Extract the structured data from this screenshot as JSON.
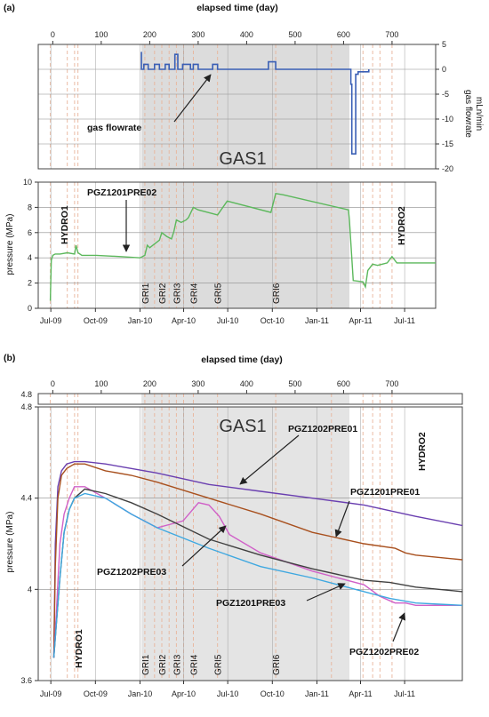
{
  "panel_a": {
    "label": "(a)",
    "top_axis_label": "elapsed time (day)",
    "top_ticks": [
      "0",
      "100",
      "200",
      "300",
      "400",
      "500",
      "600",
      "700"
    ],
    "month_ticks": [
      "Jul-09",
      "Oct-09",
      "Jan-10",
      "Apr-10",
      "Jul-10",
      "Oct-10",
      "Jan-11",
      "Apr-11",
      "Jul-11"
    ],
    "gas_area_label": "GAS1",
    "flow": {
      "ylabel_line1": "gas flowrate",
      "ylabel_line2": "mLn/min",
      "yticks": [
        "5",
        "0",
        "-5",
        "-10",
        "-15",
        "-20"
      ],
      "annotation": "gas flowrate"
    },
    "pressure": {
      "ylabel": "pressure (MPa)",
      "yticks": [
        "10",
        "8",
        "6",
        "4",
        "2",
        "0"
      ],
      "annotations": [
        "HYDRO1",
        "PGZ1201PRE02",
        "HYDRO2"
      ],
      "gri_labels": [
        "GRI1",
        "GRI2",
        "GRI3",
        "GRI4",
        "GRI5",
        "GRI6"
      ]
    },
    "colors": {
      "flow": "#3a5fb5",
      "pressure": "#5cb85c",
      "shade": "#dcdcdc",
      "event": "#e8b49a"
    }
  },
  "panel_b": {
    "label": "(b)",
    "top_axis_label": "elapsed time (day)",
    "top_ticks": [
      "0",
      "100",
      "200",
      "300",
      "400",
      "500",
      "600",
      "700"
    ],
    "month_ticks": [
      "Jul-09",
      "Oct-09",
      "Jan-10",
      "Apr-10",
      "Jul-10",
      "Oct-10",
      "Jan-11",
      "Apr-11",
      "Jul-11"
    ],
    "ylabel": "pressure (MPa)",
    "yticks": [
      "4.8",
      "4.4",
      "4",
      "3.6"
    ],
    "strip_ytick": "4.8",
    "gas_area_label": "GAS1",
    "annotations": [
      "HYDRO1",
      "HYDRO2",
      "PGZ1202PRE01",
      "PGZ1201PRE01",
      "PGZ1202PRE03",
      "PGZ1201PRE03",
      "PGZ1202PRE02"
    ],
    "gri_labels": [
      "GRI1",
      "GRI2",
      "GRI3",
      "GRI4",
      "GRI5",
      "GRI6"
    ]
  },
  "chart_data": [
    {
      "type": "line",
      "panel": "a-top",
      "xlabel": "elapsed time (day)",
      "ylabel": "gas flowrate mLn/min",
      "xlim": [
        -30,
        790
      ],
      "ylim": [
        -20,
        5
      ],
      "series": [
        {
          "name": "gas flowrate",
          "x": [
            183,
            183,
            188,
            188,
            197,
            197,
            210,
            210,
            220,
            220,
            232,
            232,
            240,
            240,
            252,
            252,
            258,
            258,
            268,
            268,
            284,
            284,
            290,
            290,
            300,
            300,
            330,
            330,
            340,
            340,
            355,
            355,
            445,
            445,
            460,
            460,
            470,
            470,
            615,
            615,
            617,
            617,
            623,
            623,
            625,
            625,
            630,
            630,
            652,
            652
          ],
          "y": [
            3.5,
            0,
            0,
            1,
            1,
            0,
            0,
            1,
            1,
            0,
            0,
            1,
            1,
            0,
            0,
            3,
            3,
            0,
            0,
            1,
            1,
            0,
            0,
            1,
            1,
            0,
            0,
            1,
            1,
            0,
            0,
            0,
            0,
            1.5,
            1.5,
            0,
            0,
            0,
            0,
            -3,
            -3,
            -17,
            -17,
            -17,
            -17,
            -1,
            -1,
            -0.5,
            -0.5,
            0
          ]
        }
      ]
    },
    {
      "type": "line",
      "panel": "a-bottom",
      "xlabel": "elapsed time (day)",
      "ylabel": "pressure (MPa)",
      "xlim": [
        -30,
        790
      ],
      "ylim": [
        0,
        10
      ],
      "series": [
        {
          "name": "pressure",
          "x": [
            -5,
            -3,
            0,
            5,
            15,
            30,
            45,
            48,
            52,
            60,
            90,
            140,
            180,
            190,
            195,
            200,
            210,
            220,
            225,
            235,
            245,
            250,
            255,
            265,
            275,
            280,
            290,
            300,
            320,
            340,
            360,
            450,
            460,
            475,
            610,
            612,
            620,
            640,
            645,
            650,
            660,
            670,
            680,
            690,
            700,
            710,
            790
          ],
          "y": [
            0.6,
            3.8,
            4.2,
            4.3,
            4.3,
            4.4,
            4.3,
            5.0,
            4.4,
            4.2,
            4.2,
            4.1,
            4.0,
            4.2,
            5.0,
            4.8,
            5.1,
            5.4,
            6.0,
            5.7,
            5.5,
            6.1,
            7.0,
            6.8,
            7.0,
            7.2,
            8.0,
            7.8,
            7.6,
            7.4,
            8.5,
            7.6,
            9.1,
            9.0,
            7.8,
            7.0,
            2.2,
            2.1,
            1.7,
            3.0,
            3.5,
            3.4,
            3.5,
            3.6,
            4.1,
            3.6,
            3.6
          ]
        }
      ]
    },
    {
      "type": "line",
      "panel": "b",
      "xlabel": "elapsed time (day)",
      "ylabel": "pressure (MPa)",
      "xlim": [
        -30,
        790
      ],
      "ylim": [
        3.6,
        4.8
      ],
      "series": [
        {
          "name": "PGZ1202PRE01",
          "color": "#6a3fb0",
          "x": [
            0,
            3,
            8,
            15,
            25,
            40,
            60,
            100,
            150,
            200,
            300,
            400,
            500,
            600,
            700,
            790
          ],
          "y": [
            3.7,
            4.2,
            4.45,
            4.52,
            4.55,
            4.56,
            4.56,
            4.55,
            4.53,
            4.51,
            4.46,
            4.43,
            4.4,
            4.37,
            4.32,
            4.28
          ]
        },
        {
          "name": "PGZ1201PRE01",
          "color": "#a8501e",
          "x": [
            0,
            3,
            8,
            15,
            25,
            40,
            60,
            100,
            150,
            200,
            300,
            400,
            500,
            600,
            660,
            680,
            700,
            790
          ],
          "y": [
            3.7,
            4.1,
            4.4,
            4.5,
            4.53,
            4.55,
            4.55,
            4.52,
            4.5,
            4.47,
            4.4,
            4.33,
            4.25,
            4.2,
            4.18,
            4.16,
            4.15,
            4.13
          ]
        },
        {
          "name": "PGZ1202PRE03",
          "color": "#d060c8",
          "x": [
            0,
            5,
            12,
            20,
            30,
            40,
            60,
            100,
            150,
            200,
            250,
            280,
            300,
            320,
            340,
            400,
            500,
            600,
            630,
            650,
            660,
            680,
            700,
            790
          ],
          "y": [
            3.7,
            3.9,
            4.2,
            4.33,
            4.4,
            4.45,
            4.45,
            4.4,
            4.33,
            4.27,
            4.3,
            4.38,
            4.37,
            4.32,
            4.24,
            4.16,
            4.08,
            4.02,
            3.97,
            3.95,
            3.94,
            3.94,
            3.93,
            3.93
          ]
        },
        {
          "name": "PGZ1201PRE03",
          "color": "#404040",
          "x": [
            0,
            5,
            12,
            20,
            30,
            40,
            60,
            100,
            150,
            200,
            300,
            400,
            500,
            600,
            650,
            700,
            790
          ],
          "y": [
            3.7,
            3.85,
            4.05,
            4.25,
            4.35,
            4.4,
            4.44,
            4.42,
            4.38,
            4.33,
            4.22,
            4.15,
            4.09,
            4.04,
            4.03,
            4.01,
            3.99
          ]
        },
        {
          "name": "PGZ1202PRE02",
          "color": "#3fa8e0",
          "x": [
            0,
            5,
            12,
            20,
            30,
            40,
            60,
            100,
            150,
            200,
            300,
            400,
            500,
            600,
            650,
            700,
            790
          ],
          "y": [
            3.7,
            3.85,
            4.05,
            4.25,
            4.35,
            4.4,
            4.42,
            4.4,
            4.33,
            4.27,
            4.18,
            4.1,
            4.05,
            3.99,
            3.96,
            3.94,
            3.93
          ]
        }
      ]
    }
  ]
}
